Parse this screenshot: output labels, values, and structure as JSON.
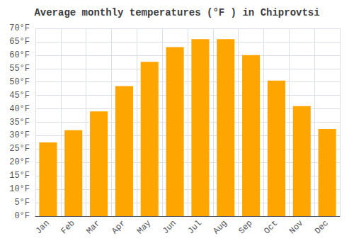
{
  "chart_data": {
    "type": "bar",
    "title": "Average monthly temperatures (°F ) in Chiprovtsi",
    "categories": [
      "Jan",
      "Feb",
      "Mar",
      "Apr",
      "May",
      "Jun",
      "Jul",
      "Aug",
      "Sep",
      "Oct",
      "Nov",
      "Dec"
    ],
    "values": [
      27.5,
      32,
      39,
      48.5,
      57.5,
      63,
      66,
      66,
      60,
      50.5,
      41,
      32.5
    ],
    "color": "#FFA500",
    "ylim": [
      0,
      70
    ],
    "yticks": [
      {
        "value": 0,
        "label": "0°F"
      },
      {
        "value": 5,
        "label": "5°F"
      },
      {
        "value": 10,
        "label": "10°F"
      },
      {
        "value": 15,
        "label": "15°F"
      },
      {
        "value": 20,
        "label": "20°F"
      },
      {
        "value": 25,
        "label": "25°F"
      },
      {
        "value": 30,
        "label": "30°F"
      },
      {
        "value": 35,
        "label": "35°F"
      },
      {
        "value": 40,
        "label": "40°F"
      },
      {
        "value": 45,
        "label": "45°F"
      },
      {
        "value": 50,
        "label": "50°F"
      },
      {
        "value": 55,
        "label": "55°F"
      },
      {
        "value": 60,
        "label": "60°F"
      },
      {
        "value": 65,
        "label": "65°F"
      },
      {
        "value": 70,
        "label": "70°F"
      }
    ],
    "grid": true
  }
}
